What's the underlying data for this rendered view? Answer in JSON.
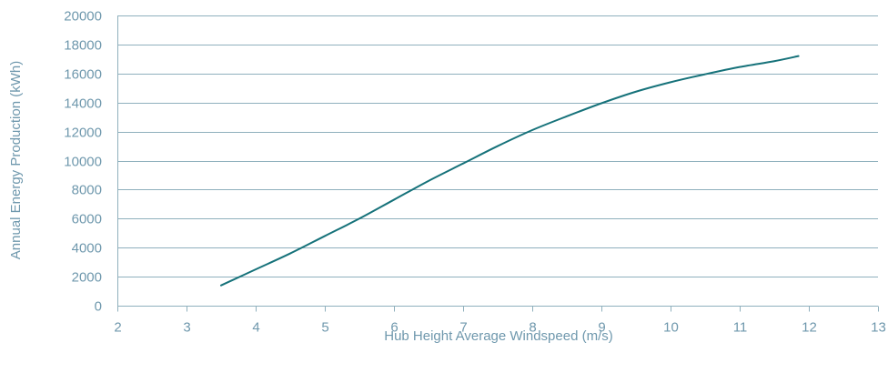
{
  "chart_data": {
    "type": "line",
    "title": "",
    "xlabel": "Hub Height Average Windspeed (m/s)",
    "ylabel": "Annual Energy Production (kWh)",
    "xlim": [
      2,
      13
    ],
    "ylim": [
      0,
      20000
    ],
    "x_ticks": [
      "2",
      "3",
      "4",
      "5",
      "6",
      "7",
      "8",
      "9",
      "10",
      "11",
      "12",
      "13"
    ],
    "y_ticks": [
      "0",
      "2000",
      "4000",
      "6000",
      "8000",
      "10000",
      "12000",
      "14000",
      "16000",
      "18000",
      "20000"
    ],
    "grid": "horizontal",
    "legend": "none",
    "line_color": "#16727a",
    "series": [
      {
        "x": [
          3.5,
          4.0,
          4.5,
          5.0,
          5.5,
          6.0,
          6.5,
          7.0,
          7.5,
          8.0,
          8.5,
          9.0,
          9.5,
          10.0,
          10.5,
          11.0,
          11.5,
          11.85
        ],
        "values": [
          1400,
          2500,
          3600,
          4800,
          6000,
          7300,
          8600,
          9800,
          11000,
          12100,
          13050,
          13950,
          14750,
          15400,
          15950,
          16450,
          16850,
          17200
        ]
      }
    ]
  }
}
